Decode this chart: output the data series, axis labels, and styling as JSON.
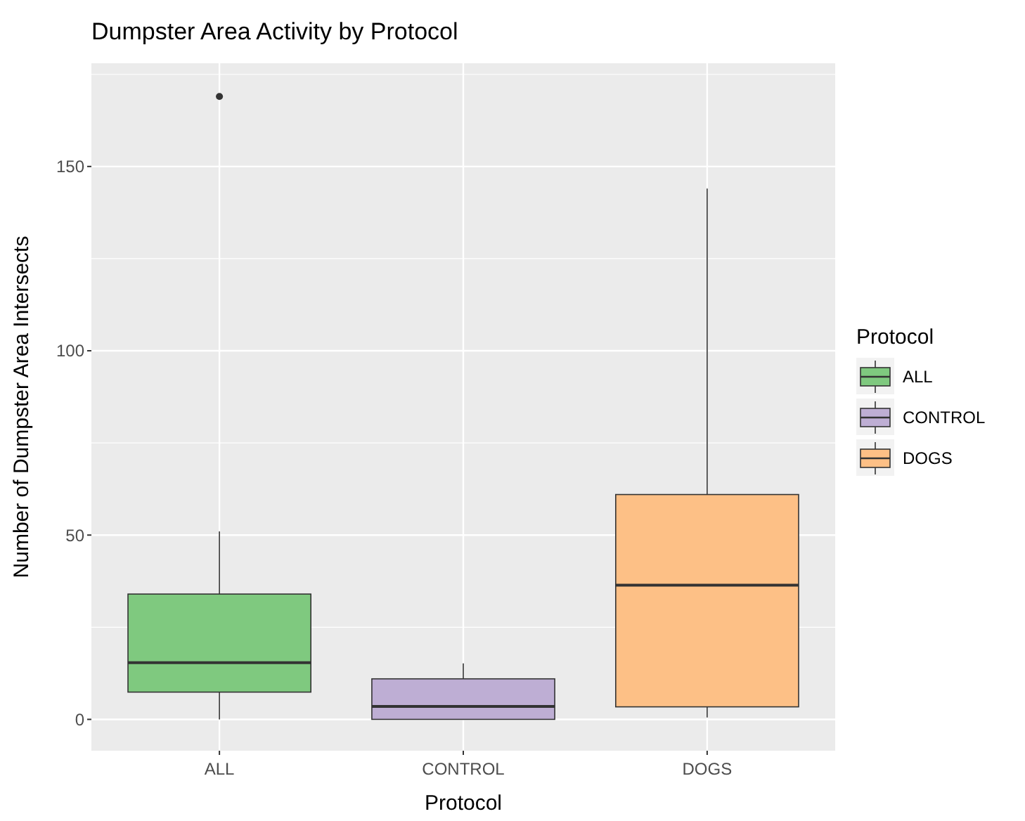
{
  "chart_data": {
    "type": "box",
    "title": "Dumpster Area Activity by Protocol",
    "xlabel": "Protocol",
    "ylabel": "Number of Dumpster Area Intersects",
    "legend_title": "Protocol",
    "legend": "right",
    "grid": true,
    "categories": [
      "ALL",
      "CONTROL",
      "DOGS"
    ],
    "series": [
      {
        "name": "ALL",
        "color": "#7fc97f",
        "boxes": [
          {
            "low": 0,
            "q1": 7.4,
            "median": 15.4,
            "q3": 34,
            "high": 51,
            "outliers": [
              169
            ]
          },
          null,
          null
        ]
      },
      {
        "name": "CONTROL",
        "color": "#beaed4",
        "boxes": [
          null,
          {
            "low": 0,
            "q1": 0,
            "median": 3.5,
            "q3": 11,
            "high": 15.2
          },
          null
        ]
      },
      {
        "name": "DOGS",
        "color": "#fdc086",
        "boxes": [
          null,
          null,
          {
            "low": 0.5,
            "q1": 3.4,
            "median": 36.4,
            "q3": 61,
            "high": 144
          }
        ]
      }
    ],
    "ylim": [
      -8.5,
      178
    ],
    "yticks": [
      0,
      50,
      100,
      150
    ]
  }
}
